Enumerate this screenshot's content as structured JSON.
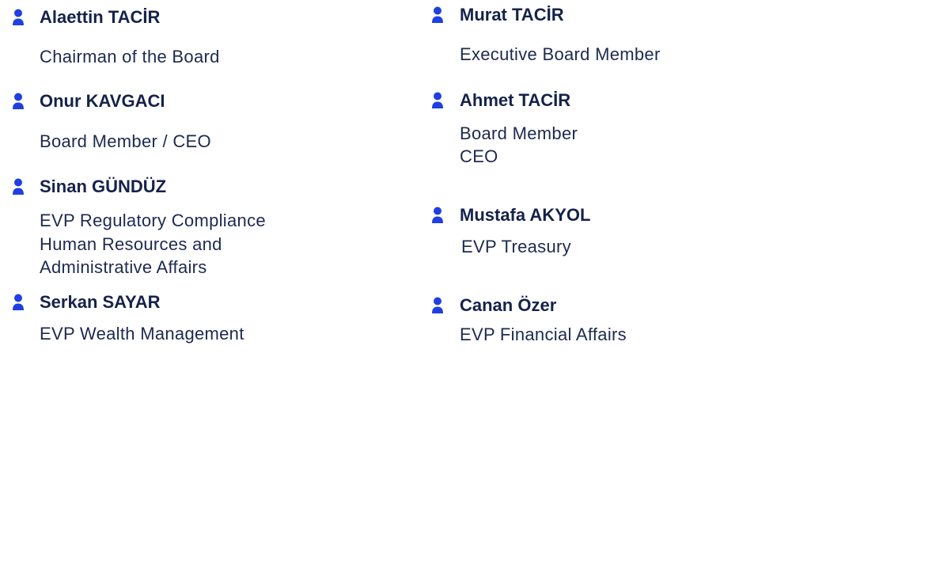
{
  "accent_color": "#1f3fe0",
  "icon": "person-icon",
  "members": [
    {
      "name": "Alaettin TACİR",
      "title_lines": [
        "Chairman of the Board"
      ]
    },
    {
      "name": "Onur KAVGACI",
      "title_lines": [
        "Board Member / CEO"
      ]
    },
    {
      "name": "Sinan GÜNDÜZ",
      "title_lines": [
        "EVP Regulatory Compliance",
        "Human Resources and",
        "Administrative Affairs"
      ]
    },
    {
      "name": "Serkan SAYAR",
      "title_lines": [
        "EVP Wealth Management"
      ]
    },
    {
      "name": "Murat TACİR",
      "title_lines": [
        "Executive Board Member"
      ]
    },
    {
      "name": "Ahmet TACİR",
      "title_lines": [
        "Board Member",
        "CEO"
      ]
    },
    {
      "name": "Mustafa AKYOL",
      "title_lines": [
        "EVP Treasury"
      ]
    },
    {
      "name": "Canan Özer",
      "title_lines": [
        "EVP Financial Affairs"
      ]
    }
  ]
}
